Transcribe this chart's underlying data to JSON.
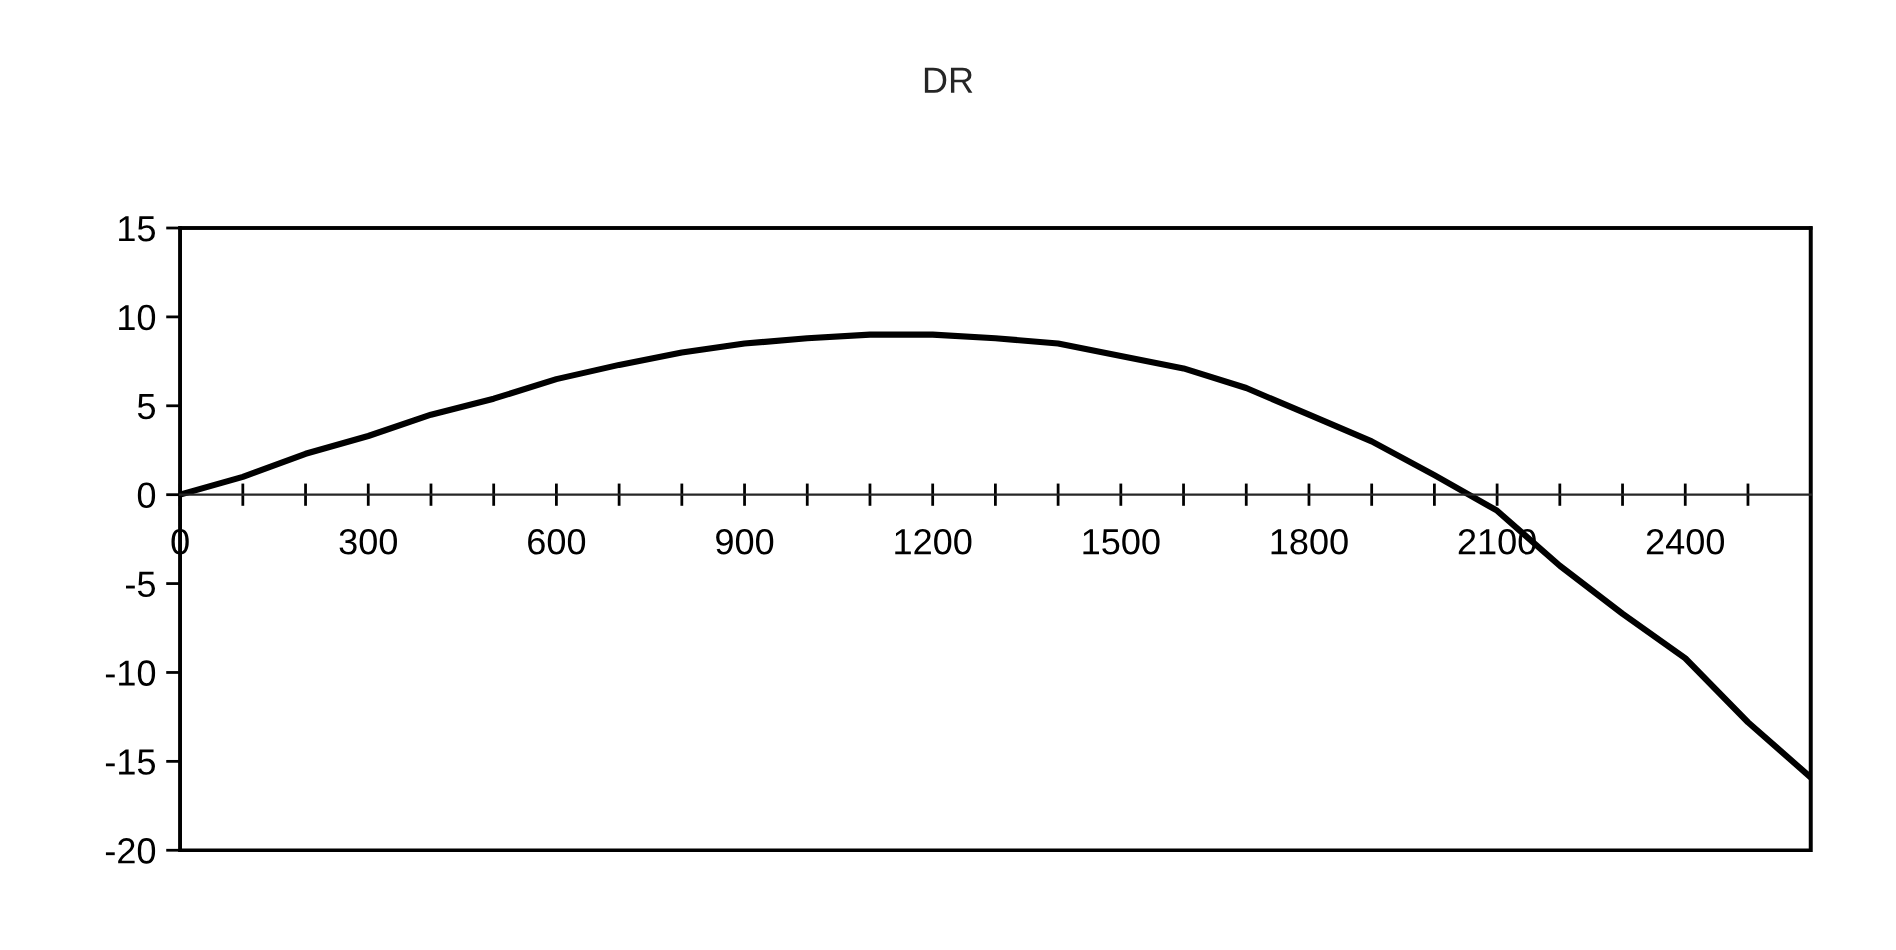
{
  "chart_data": {
    "type": "line",
    "title": "DR",
    "x": [
      0,
      100,
      200,
      300,
      400,
      500,
      600,
      700,
      800,
      900,
      1000,
      1100,
      1200,
      1300,
      1400,
      1500,
      1600,
      1700,
      1800,
      1900,
      2000,
      2100,
      2200,
      2300,
      2400,
      2500,
      2600
    ],
    "series": [
      {
        "color": "#000000",
        "values": [
          0,
          1.0,
          2.3,
          3.3,
          4.5,
          5.4,
          6.5,
          7.3,
          8.0,
          8.5,
          8.8,
          9.0,
          9.0,
          8.8,
          8.5,
          7.8,
          7.1,
          6.0,
          4.5,
          3.0,
          1.1,
          -0.9,
          -4.0,
          -6.7,
          -9.2,
          -12.8,
          -15.9
        ]
      }
    ],
    "xlim": [
      0,
      2600
    ],
    "xticks": [
      0,
      {
        "value": 100,
        "label": null
      },
      {
        "value": 200,
        "label": null
      },
      300,
      {
        "value": 400,
        "label": null
      },
      {
        "value": 500,
        "label": null
      },
      600,
      {
        "value": 700,
        "label": null
      },
      {
        "value": 800,
        "label": null
      },
      900,
      {
        "value": 1000,
        "label": null
      },
      {
        "value": 1100,
        "label": null
      },
      1200,
      {
        "value": 1300,
        "label": null
      },
      {
        "value": 1400,
        "label": null
      },
      1500,
      {
        "value": 1600,
        "label": null
      },
      {
        "value": 1700,
        "label": null
      },
      1800,
      {
        "value": 1900,
        "label": null
      },
      {
        "value": 2000,
        "label": null
      },
      2100,
      {
        "value": 2200,
        "label": null
      },
      {
        "value": 2300,
        "label": null
      },
      2400,
      {
        "value": 2500,
        "label": null
      }
    ],
    "ylim": [
      -20,
      15
    ],
    "yticks": [
      -20,
      -15,
      -10,
      -5,
      0,
      5,
      10,
      15
    ],
    "grid": false,
    "marker": "none",
    "line_style": "solid"
  }
}
